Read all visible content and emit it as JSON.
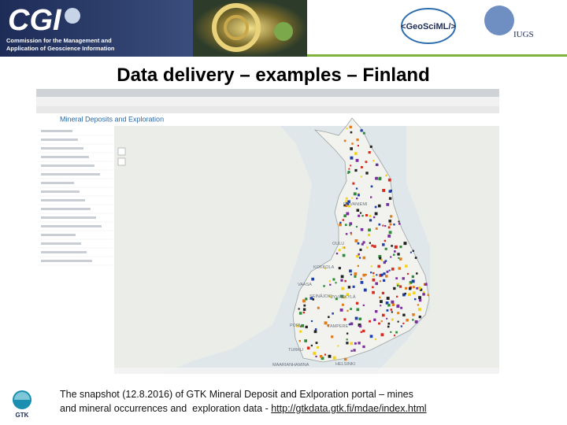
{
  "header": {
    "org": "CGI",
    "org_lines": [
      "Commission for the Management and",
      "Application of Geoscience Information"
    ]
  },
  "logos": {
    "geosciml": "<GeoSciML/>",
    "iugs": "IUGS"
  },
  "title": "Data delivery – examples – Finland",
  "screenshot": {
    "app_title": "Mineral Deposits and Exploration",
    "map_labels": [
      "ROVANIEMI",
      "OULU",
      "KOKKOLA",
      "VAASA",
      "SEINÄJOKI",
      "JYVÄSKYLÄ",
      "PORI",
      "TAMPERE",
      "TURKU",
      "HELSINKI",
      "MAARIANHAMINA"
    ]
  },
  "footer": {
    "logo": "GTK",
    "caption_lines": [
      "The snapshot (12.8.2016) of GTK Mineral Deposit and Exlporation portal – mines",
      "and mineral occurrences and  exploration data - "
    ],
    "link": "http://gtkdata.gtk.fi/mdae/index.html"
  }
}
